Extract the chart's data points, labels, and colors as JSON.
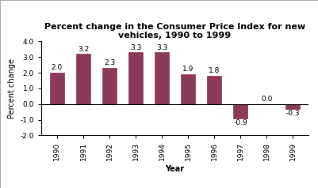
{
  "years": [
    "1990",
    "1991",
    "1992",
    "1993",
    "1994",
    "1995",
    "1996",
    "1997",
    "1998",
    "1999"
  ],
  "values": [
    2.0,
    3.2,
    2.3,
    3.3,
    3.3,
    1.9,
    1.8,
    -0.9,
    0.0,
    -0.3
  ],
  "bar_color": "#8B3A5A",
  "title": "Percent change in the Consumer Price Index for new\nvehicles, 1990 to 1999",
  "xlabel": "Year",
  "ylabel": "Percent change",
  "ylim": [
    -2.0,
    4.0
  ],
  "yticks": [
    -2.0,
    -1.0,
    0.0,
    1.0,
    2.0,
    3.0,
    4.0
  ],
  "ytick_labels": [
    "-2.0",
    "-1.0",
    "0.0",
    "1.0",
    "2.0",
    "3.0",
    "4.0"
  ],
  "background_color": "#ffffff",
  "title_fontsize": 8,
  "label_fontsize": 7,
  "tick_fontsize": 6.5,
  "bar_label_fontsize": 6.5
}
